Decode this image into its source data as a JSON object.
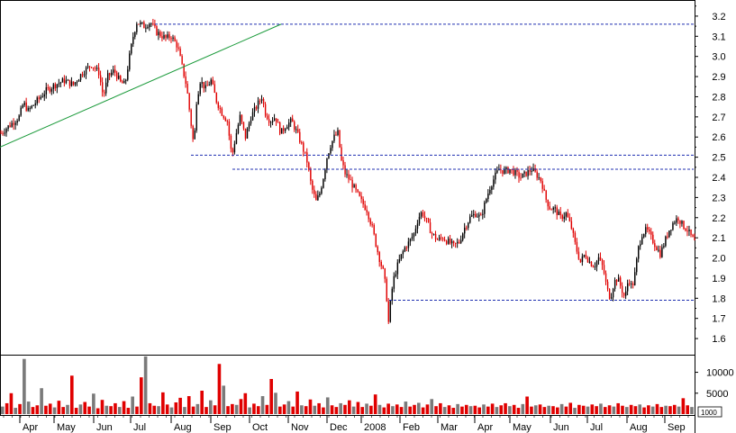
{
  "chart_data": [
    {
      "type": "candlestick",
      "panel": "price",
      "title": "",
      "xlabel": "",
      "ylabel": "",
      "ylim": [
        1.52,
        3.28
      ],
      "y_ticks": [
        "1.6",
        "1.7",
        "1.8",
        "1.9",
        "2.0",
        "2.1",
        "2.2",
        "2.3",
        "2.4",
        "2.5",
        "2.6",
        "2.7",
        "2.8",
        "2.9",
        "3.0",
        "3.1",
        "3.2"
      ],
      "colors": {
        "up": "#000000",
        "down": "#e00000",
        "trendline": "#1a9a3a",
        "level": "#1f2fb0"
      },
      "price_path": [
        [
          0,
          2.62
        ],
        [
          10,
          2.66
        ],
        [
          20,
          2.7
        ],
        [
          25,
          2.77
        ],
        [
          30,
          2.73
        ],
        [
          40,
          2.78
        ],
        [
          50,
          2.83
        ],
        [
          60,
          2.86
        ],
        [
          70,
          2.88
        ],
        [
          80,
          2.86
        ],
        [
          90,
          2.92
        ],
        [
          100,
          2.96
        ],
        [
          108,
          2.92
        ],
        [
          113,
          2.8
        ],
        [
          118,
          2.9
        ],
        [
          125,
          2.93
        ],
        [
          132,
          2.87
        ],
        [
          137,
          2.86
        ],
        [
          142,
          3.0
        ],
        [
          146,
          3.1
        ],
        [
          150,
          3.17
        ],
        [
          158,
          3.15
        ],
        [
          165,
          3.17
        ],
        [
          172,
          3.12
        ],
        [
          182,
          3.09
        ],
        [
          188,
          3.1
        ],
        [
          195,
          3.05
        ],
        [
          200,
          2.95
        ],
        [
          205,
          2.85
        ],
        [
          209,
          2.7
        ],
        [
          213,
          2.55
        ],
        [
          216,
          2.78
        ],
        [
          220,
          2.88
        ],
        [
          226,
          2.84
        ],
        [
          232,
          2.88
        ],
        [
          238,
          2.78
        ],
        [
          244,
          2.72
        ],
        [
          250,
          2.68
        ],
        [
          255,
          2.5
        ],
        [
          259,
          2.6
        ],
        [
          264,
          2.7
        ],
        [
          270,
          2.6
        ],
        [
          276,
          2.7
        ],
        [
          282,
          2.75
        ],
        [
          288,
          2.8
        ],
        [
          292,
          2.72
        ],
        [
          297,
          2.68
        ],
        [
          303,
          2.7
        ],
        [
          309,
          2.62
        ],
        [
          315,
          2.66
        ],
        [
          321,
          2.68
        ],
        [
          327,
          2.62
        ],
        [
          333,
          2.55
        ],
        [
          338,
          2.48
        ],
        [
          343,
          2.35
        ],
        [
          348,
          2.28
        ],
        [
          352,
          2.32
        ],
        [
          356,
          2.4
        ],
        [
          360,
          2.5
        ],
        [
          364,
          2.56
        ],
        [
          368,
          2.6
        ],
        [
          372,
          2.62
        ],
        [
          376,
          2.48
        ],
        [
          380,
          2.42
        ],
        [
          386,
          2.38
        ],
        [
          392,
          2.33
        ],
        [
          398,
          2.28
        ],
        [
          404,
          2.24
        ],
        [
          410,
          2.15
        ],
        [
          415,
          2.05
        ],
        [
          419,
          1.98
        ],
        [
          423,
          1.92
        ],
        [
          426,
          1.8
        ],
        [
          428,
          1.68
        ],
        [
          431,
          1.82
        ],
        [
          434,
          1.9
        ],
        [
          437,
          1.95
        ],
        [
          441,
          2.0
        ],
        [
          446,
          2.05
        ],
        [
          451,
          2.08
        ],
        [
          456,
          2.12
        ],
        [
          461,
          2.2
        ],
        [
          465,
          2.23
        ],
        [
          470,
          2.18
        ],
        [
          476,
          2.12
        ],
        [
          482,
          2.09
        ],
        [
          488,
          2.1
        ],
        [
          494,
          2.08
        ],
        [
          500,
          2.06
        ],
        [
          506,
          2.08
        ],
        [
          512,
          2.15
        ],
        [
          518,
          2.2
        ],
        [
          524,
          2.22
        ],
        [
          530,
          2.2
        ],
        [
          535,
          2.28
        ],
        [
          540,
          2.35
        ],
        [
          545,
          2.4
        ],
        [
          550,
          2.44
        ],
        [
          556,
          2.43
        ],
        [
          562,
          2.44
        ],
        [
          568,
          2.42
        ],
        [
          574,
          2.4
        ],
        [
          580,
          2.42
        ],
        [
          586,
          2.44
        ],
        [
          592,
          2.41
        ],
        [
          597,
          2.38
        ],
        [
          601,
          2.3
        ],
        [
          606,
          2.25
        ],
        [
          612,
          2.24
        ],
        [
          618,
          2.2
        ],
        [
          624,
          2.22
        ],
        [
          630,
          2.15
        ],
        [
          635,
          2.05
        ],
        [
          640,
          1.98
        ],
        [
          645,
          2.02
        ],
        [
          650,
          1.98
        ],
        [
          655,
          1.96
        ],
        [
          660,
          2.0
        ],
        [
          665,
          1.95
        ],
        [
          669,
          1.85
        ],
        [
          673,
          1.8
        ],
        [
          677,
          1.88
        ],
        [
          681,
          1.9
        ],
        [
          685,
          1.85
        ],
        [
          689,
          1.8
        ],
        [
          693,
          1.9
        ],
        [
          697,
          1.85
        ],
        [
          700,
          1.92
        ],
        [
          704,
          2.05
        ],
        [
          708,
          2.12
        ],
        [
          713,
          2.14
        ],
        [
          718,
          2.1
        ],
        [
          723,
          2.06
        ],
        [
          728,
          2.02
        ],
        [
          733,
          2.08
        ],
        [
          738,
          2.14
        ],
        [
          743,
          2.18
        ],
        [
          748,
          2.2
        ],
        [
          753,
          2.16
        ],
        [
          758,
          2.14
        ],
        [
          763,
          2.1
        ],
        [
          766,
          2.08
        ]
      ],
      "trendline": {
        "start_value": 2.55,
        "end_value": 3.16
      },
      "levels": [
        3.16,
        2.51,
        2.44,
        1.79
      ]
    },
    {
      "type": "bar",
      "panel": "volume",
      "y_ticks": [
        "5000",
        "10000"
      ],
      "ylim": [
        0,
        14000
      ],
      "bar_colors": {
        "up": "#7a7a7a",
        "down": "#e00000"
      },
      "values": [
        1800,
        2600,
        5000,
        1500,
        2400,
        13200,
        3000,
        1700,
        2100,
        6200,
        2000,
        2500,
        1600,
        3200,
        1700,
        2200,
        9200,
        1500,
        2300,
        2900,
        1800,
        4900,
        1400,
        3400,
        2000,
        1900,
        2600,
        1700,
        3100,
        1500,
        4200,
        1800,
        8800,
        13800,
        2600,
        2000,
        1900,
        5200,
        2300,
        1600,
        2800,
        3900,
        1700,
        4300,
        1800,
        2400,
        5600,
        1700,
        3300,
        2100,
        12000,
        6800,
        1900,
        2400,
        2200,
        3600,
        5000,
        1600,
        2500,
        1900,
        4300,
        2200,
        8400,
        5100,
        1800,
        2300,
        3100,
        1800,
        5400,
        2100,
        1900,
        3500,
        2000,
        2600,
        1600,
        4000,
        2100,
        1700,
        2600,
        2200,
        3300,
        1800,
        2900,
        1700,
        2500,
        2000,
        4700,
        2200,
        1600,
        2500,
        1900,
        2300,
        1700,
        3000,
        1800,
        2200,
        2700,
        1600,
        2300,
        3600,
        1900,
        2600,
        1700,
        2100,
        1500,
        2400,
        1800,
        2200,
        1900,
        2000,
        1600,
        2300,
        1800,
        2500,
        1700,
        2100,
        2600,
        1900,
        2200,
        1500,
        2400,
        4200,
        1800,
        2100,
        2300,
        1700,
        2000,
        1900,
        1600,
        2400,
        1800,
        2700,
        1500,
        2200,
        2000,
        1800,
        2300,
        1900,
        2500,
        1700,
        2100,
        1800,
        2600,
        2000,
        1700,
        2200,
        1900,
        2300,
        1600,
        2100,
        1800,
        2400,
        1700,
        2000,
        1900,
        2200,
        1800,
        3800,
        2100,
        1700
      ]
    }
  ],
  "x_axis": {
    "labels": [
      "Apr",
      "May",
      "Jun",
      "Jul",
      "Aug",
      "Sep",
      "Oct",
      "Nov",
      "Dec",
      "2008",
      "Feb",
      "Mar",
      "Apr",
      "May",
      "Jun",
      "Jul",
      "Aug",
      "Sep"
    ]
  },
  "volume_scale_label": "1000"
}
